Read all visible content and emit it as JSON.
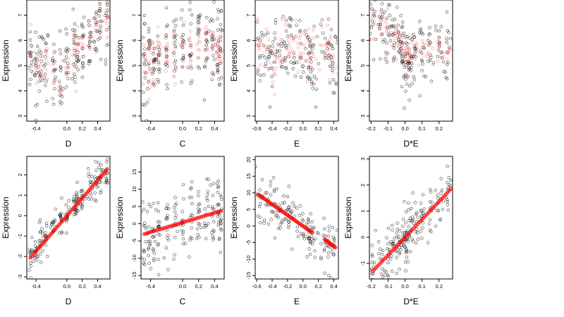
{
  "chart_data": [
    {
      "type": "scatter",
      "row": 0,
      "col": 0,
      "xlabel": "D",
      "ylabel": "Expression",
      "xlim": [
        -0.52,
        0.56
      ],
      "ylim": [
        2.8,
        7.6
      ],
      "xticks": [
        -0.4,
        0.0,
        0.2,
        0.4
      ],
      "xtick_labels": [
        "-0.4",
        "0.0",
        "0.2",
        "0.4"
      ],
      "yticks": [
        3,
        4,
        5,
        6,
        7
      ],
      "ytick_labels": [
        "3",
        "4",
        "5",
        "6",
        "7"
      ],
      "grid": false,
      "series": [
        {
          "color": "#000000",
          "style": "open-circle",
          "cloud": {
            "centers": [
              -0.47,
              -0.4,
              -0.34,
              -0.27,
              -0.17,
              -0.08,
              0.0,
              0.1,
              0.13,
              0.2,
              0.3,
              0.38,
              0.43,
              0.52
            ],
            "mean": [
              5.3,
              4.8,
              5.0,
              5.1,
              4.6,
              4.5,
              5.0,
              5.6,
              5.4,
              5.8,
              6.0,
              6.6,
              6.8,
              6.8
            ],
            "sd": 0.75,
            "n": 14,
            "xjitter": 0.015
          }
        },
        {
          "color": "#ff0000",
          "style": "open-circle-translucent",
          "cloud": {
            "centers": [
              -0.47,
              -0.4,
              -0.34,
              -0.27,
              -0.17,
              -0.08,
              0.0,
              0.1,
              0.13,
              0.2,
              0.3,
              0.38,
              0.43,
              0.52
            ],
            "mean": [
              5.6,
              5.0,
              5.0,
              5.2,
              4.7,
              4.4,
              5.1,
              5.6,
              5.5,
              5.9,
              6.2,
              6.7,
              7.0,
              6.9
            ],
            "sd": 0.45,
            "n": 8,
            "xjitter": 0.01
          }
        }
      ]
    },
    {
      "type": "scatter",
      "row": 0,
      "col": 1,
      "xlabel": "C",
      "ylabel": "Expression",
      "xlim": [
        -0.52,
        0.52
      ],
      "ylim": [
        2.8,
        7.6
      ],
      "xticks": [
        -0.4,
        0.0,
        0.2,
        0.4
      ],
      "xtick_labels": [
        "-0.4",
        "0.0",
        "0.2",
        "0.4"
      ],
      "yticks": [
        3,
        4,
        5,
        6,
        7
      ],
      "ytick_labels": [
        "3",
        "4",
        "5",
        "6",
        "7"
      ],
      "grid": false,
      "series": [
        {
          "color": "#000000",
          "style": "open-circle",
          "cloud": {
            "centers": [
              -0.48,
              -0.42,
              -0.36,
              -0.3,
              -0.2,
              -0.1,
              0.0,
              0.1,
              0.2,
              0.3,
              0.38,
              0.44,
              0.48
            ],
            "mean": [
              5.0,
              5.1,
              5.2,
              5.3,
              5.5,
              5.5,
              5.6,
              5.7,
              5.8,
              5.8,
              5.9,
              6.0,
              6.0
            ],
            "sd": 0.85,
            "n": 15,
            "xjitter": 0.012
          }
        },
        {
          "color": "#ff0000",
          "style": "open-circle-translucent",
          "cloud": {
            "centers": [
              -0.48,
              -0.42,
              -0.36,
              -0.3,
              -0.2,
              -0.1,
              0.0,
              0.1,
              0.2,
              0.3,
              0.38,
              0.44,
              0.48
            ],
            "mean": [
              5.0,
              5.0,
              5.2,
              5.3,
              5.4,
              5.5,
              5.6,
              5.6,
              5.8,
              5.8,
              5.7,
              5.6,
              5.6
            ],
            "sd": 0.55,
            "n": 10,
            "xjitter": 0.01
          }
        }
      ]
    },
    {
      "type": "scatter",
      "row": 0,
      "col": 2,
      "xlabel": "E",
      "ylabel": "Expression",
      "xlim": [
        -0.62,
        0.46
      ],
      "ylim": [
        2.8,
        7.6
      ],
      "xticks": [
        -0.6,
        -0.4,
        -0.2,
        0.0,
        0.2,
        0.4
      ],
      "xtick_labels": [
        "-0.6",
        "-0.4",
        "-0.2",
        "0.0",
        "0.2",
        "0.4"
      ],
      "yticks": [
        3,
        4,
        5,
        6,
        7
      ],
      "ytick_labels": [
        "3",
        "4",
        "5",
        "6",
        "7"
      ],
      "grid": false,
      "series": [
        {
          "color": "#000000",
          "style": "open-circle",
          "cloud": {
            "centers": [
              -0.58,
              -0.5,
              -0.42,
              -0.35,
              -0.28,
              -0.2,
              -0.12,
              -0.04,
              0.05,
              0.1,
              0.12,
              0.28,
              0.35,
              0.4
            ],
            "mean": [
              5.8,
              5.6,
              5.5,
              5.4,
              5.6,
              6.2,
              5.8,
              6.0,
              5.4,
              5.0,
              4.8,
              5.5,
              5.3,
              5.4
            ],
            "sd": 0.75,
            "n": 12,
            "xjitter": 0.04
          }
        },
        {
          "color": "#ff0000",
          "style": "open-circle-translucent",
          "cloud": {
            "centers": [
              -0.58,
              -0.5,
              -0.42,
              -0.35,
              -0.28,
              -0.2,
              -0.12,
              -0.04,
              0.05,
              0.1,
              0.12,
              0.28,
              0.35,
              0.4
            ],
            "mean": [
              5.8,
              5.6,
              5.3,
              5.2,
              5.4,
              6.0,
              5.5,
              5.6,
              5.3,
              5.3,
              5.4,
              5.6,
              5.4,
              5.5
            ],
            "sd": 0.6,
            "n": 8,
            "xjitter": 0.04
          }
        }
      ]
    },
    {
      "type": "scatter",
      "row": 0,
      "col": 3,
      "xlabel": "D*E",
      "ylabel": "Expression",
      "xlim": [
        -0.21,
        0.28
      ],
      "ylim": [
        2.8,
        7.6
      ],
      "xticks": [
        -0.2,
        -0.1,
        0.0,
        0.1,
        0.2
      ],
      "xtick_labels": [
        "-0.2",
        "-0.1",
        "0.0",
        "0.1",
        "0.2"
      ],
      "yticks": [
        3,
        4,
        5,
        6,
        7
      ],
      "ytick_labels": [
        "3",
        "4",
        "5",
        "6",
        "7"
      ],
      "grid": false,
      "series": [
        {
          "color": "#000000",
          "style": "open-circle",
          "cloud": {
            "centers": [
              -0.19,
              -0.14,
              -0.1,
              -0.07,
              -0.04,
              -0.02,
              0.0,
              0.01,
              0.03,
              0.06,
              0.1,
              0.15,
              0.2,
              0.25
            ],
            "mean": [
              6.8,
              6.6,
              6.4,
              6.3,
              6.0,
              5.6,
              5.2,
              4.9,
              5.2,
              5.4,
              5.5,
              5.6,
              5.8,
              5.8
            ],
            "sd": 0.6,
            "n": 14,
            "xjitter": 0.01
          }
        },
        {
          "color": "#ff0000",
          "style": "open-circle-translucent",
          "cloud": {
            "centers": [
              -0.19,
              -0.14,
              -0.1,
              -0.07,
              -0.04,
              -0.02,
              0.0,
              0.01,
              0.03,
              0.06,
              0.1,
              0.15,
              0.2,
              0.25
            ],
            "mean": [
              6.6,
              6.6,
              6.4,
              6.2,
              6.0,
              5.8,
              5.6,
              5.4,
              5.5,
              5.5,
              5.5,
              5.6,
              5.6,
              5.6
            ],
            "sd": 0.35,
            "n": 8,
            "xjitter": 0.01
          }
        }
      ]
    },
    {
      "type": "scatter",
      "row": 1,
      "col": 0,
      "xlabel": "D",
      "ylabel": "Expression",
      "xlim": [
        -0.52,
        0.56
      ],
      "ylim": [
        -3.1,
        2.9
      ],
      "xticks": [
        -0.4,
        0.0,
        0.2,
        0.4
      ],
      "xtick_labels": [
        "-0.4",
        "0.0",
        "0.2",
        "0.4"
      ],
      "yticks": [
        -3,
        -2,
        -1,
        0,
        1,
        2
      ],
      "ytick_labels": [
        "-3",
        "-2",
        "-1",
        "0",
        "1",
        "2"
      ],
      "grid": false,
      "series": [
        {
          "color": "#000000",
          "style": "open-circle",
          "cloud": {
            "centers": [
              -0.47,
              -0.4,
              -0.34,
              -0.27,
              -0.17,
              -0.08,
              0.0,
              0.1,
              0.13,
              0.2,
              0.3,
              0.38,
              0.43,
              0.52
            ],
            "mean": [
              -2.1,
              -1.7,
              -1.3,
              -1.0,
              -0.6,
              -0.3,
              0.0,
              0.4,
              0.6,
              0.9,
              1.3,
              1.6,
              1.9,
              2.2
            ],
            "sd": 0.4,
            "n": 14,
            "xjitter": 0.015
          }
        },
        {
          "color": "#ff0000",
          "style": "filled-circle-translucent",
          "line": {
            "x": [
              -0.47,
              0.52
            ],
            "y": [
              -2.05,
              2.25
            ],
            "n": 55
          }
        }
      ]
    },
    {
      "type": "scatter",
      "row": 1,
      "col": 1,
      "xlabel": "C",
      "ylabel": "Expression",
      "xlim": [
        -0.52,
        0.52
      ],
      "ylim": [
        -16,
        19.5
      ],
      "xticks": [
        -0.4,
        0.0,
        0.2,
        0.4
      ],
      "xtick_labels": [
        "-0.4",
        "0.0",
        "0.2",
        "0.4"
      ],
      "yticks": [
        -15,
        -10,
        -5,
        0,
        5,
        10,
        15
      ],
      "ytick_labels": [
        "-15",
        "-10",
        "-5",
        "0",
        "5",
        "10",
        "15"
      ],
      "grid": false,
      "series": [
        {
          "color": "#000000",
          "style": "open-circle",
          "cloud": {
            "centers": [
              -0.48,
              -0.42,
              -0.36,
              -0.3,
              -0.2,
              -0.1,
              0.0,
              0.1,
              0.2,
              0.3,
              0.38,
              0.44,
              0.48
            ],
            "mean": [
              -3.5,
              -3.0,
              -2.5,
              -2.0,
              -1.5,
              -0.8,
              0.0,
              0.6,
              1.2,
              1.8,
              2.4,
              3.0,
              3.6
            ],
            "sd": 5.5,
            "n": 15,
            "xjitter": 0.012
          }
        },
        {
          "color": "#ff0000",
          "style": "filled-circle-translucent",
          "line": {
            "x": [
              -0.48,
              0.48
            ],
            "y": [
              -3.0,
              3.7
            ],
            "n": 40
          }
        }
      ]
    },
    {
      "type": "scatter",
      "row": 1,
      "col": 2,
      "xlabel": "E",
      "ylabel": "Expression",
      "xlim": [
        -0.62,
        0.46
      ],
      "ylim": [
        -16,
        21
      ],
      "xticks": [
        -0.6,
        -0.4,
        -0.2,
        0.0,
        0.2,
        0.4
      ],
      "xtick_labels": [
        "-0.6",
        "-0.4",
        "-0.2",
        "0.0",
        "0.2",
        "0.4"
      ],
      "yticks": [
        -15,
        -10,
        -5,
        0,
        5,
        10,
        15,
        20
      ],
      "ytick_labels": [
        "-15",
        "-10",
        "-5",
        "0",
        "5",
        "10",
        "15",
        "20"
      ],
      "grid": false,
      "series": [
        {
          "color": "#000000",
          "style": "open-circle",
          "cloud": {
            "centers": [
              -0.58,
              -0.5,
              -0.42,
              -0.35,
              -0.28,
              -0.2,
              -0.12,
              -0.04,
              0.05,
              0.1,
              0.12,
              0.28,
              0.35,
              0.4
            ],
            "mean": [
              9.5,
              8.0,
              7.0,
              6.0,
              4.5,
              3.5,
              2.5,
              1.0,
              -1.0,
              -2.5,
              -3.0,
              -4.5,
              -5.5,
              -6.5
            ],
            "sd": 4.0,
            "n": 12,
            "xjitter": 0.04
          }
        },
        {
          "color": "#ff0000",
          "style": "filled-circle-translucent",
          "line": {
            "x": [
              -0.58,
              0.12
            ],
            "y": [
              9.5,
              -2.0
            ],
            "n": 45
          }
        },
        {
          "color": "#ff0000",
          "style": "filled-circle-translucent",
          "line": {
            "x": [
              0.28,
              0.42
            ],
            "y": [
              -4.0,
              -6.5
            ],
            "n": 12
          }
        }
      ]
    },
    {
      "type": "scatter",
      "row": 1,
      "col": 3,
      "xlabel": "D*E",
      "ylabel": "Expression",
      "xlim": [
        -0.21,
        0.28
      ],
      "ylim": [
        -1.6,
        3.1
      ],
      "xticks": [
        -0.2,
        -0.1,
        0.0,
        0.1,
        0.2
      ],
      "xtick_labels": [
        "-0.2",
        "-0.1",
        "0.0",
        "0.1",
        "0.2"
      ],
      "yticks": [
        -1,
        0,
        1,
        2,
        3
      ],
      "ytick_labels": [
        "-1",
        "0",
        "1",
        "2",
        "3"
      ],
      "grid": false,
      "series": [
        {
          "color": "#000000",
          "style": "open-circle",
          "cloud": {
            "centers": [
              -0.19,
              -0.14,
              -0.1,
              -0.07,
              -0.04,
              -0.02,
              0.0,
              0.01,
              0.03,
              0.06,
              0.1,
              0.15,
              0.2,
              0.25
            ],
            "mean": [
              -1.3,
              -0.9,
              -0.6,
              -0.4,
              -0.2,
              0.0,
              0.0,
              0.2,
              0.3,
              0.5,
              0.8,
              1.1,
              1.4,
              1.8
            ],
            "sd": 0.55,
            "n": 14,
            "xjitter": 0.01
          }
        },
        {
          "color": "#ff0000",
          "style": "filled-circle-translucent",
          "line": {
            "x": [
              -0.19,
              0.27
            ],
            "y": [
              -1.3,
              1.85
            ],
            "n": 50
          }
        }
      ]
    }
  ]
}
